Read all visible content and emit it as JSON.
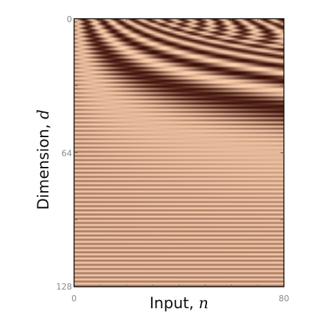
{
  "chart_data": {
    "type": "heatmap",
    "title": "",
    "xlabel": "Input, ",
    "xlabel_var": "n",
    "ylabel": "Dimension, ",
    "ylabel_var": "d",
    "xlim": [
      0,
      80
    ],
    "ylim": [
      0,
      128
    ],
    "x_ticks": [
      "0",
      "80"
    ],
    "y_ticks": [
      "0",
      "64",
      "128"
    ],
    "y_axis_inverted": true,
    "grid": false,
    "legend": "none",
    "colormap": "copper",
    "colors": {
      "low": "#3a0e06",
      "high": "#ffd3b0"
    },
    "value_function": "0.5 + 0.5 * cos(n * 10000^(-(2*floor(d/2))/128) - (d mod 2) * pi/2)"
  }
}
